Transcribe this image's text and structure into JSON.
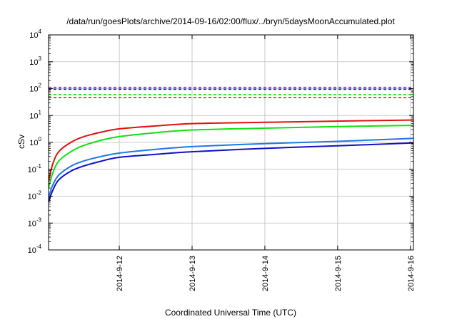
{
  "chart_data": {
    "type": "line",
    "title": "/data/run/goesPlots/archive/2014-09-16/02:00/flux/../bryn/5daysMoonAccumulated.plot",
    "xlabel": "Coordinated Universal Time (UTC)",
    "ylabel": "cSv",
    "y_scale": "log",
    "ylim": [
      0.0001,
      10000
    ],
    "y_ticks": [
      {
        "value": 0.0001,
        "base": "10",
        "exp": "-4"
      },
      {
        "value": 0.001,
        "base": "10",
        "exp": "-3"
      },
      {
        "value": 0.01,
        "base": "10",
        "exp": "-2"
      },
      {
        "value": 0.1,
        "base": "10",
        "exp": "-1"
      },
      {
        "value": 1,
        "base": "10",
        "exp": "0"
      },
      {
        "value": 10,
        "base": "10",
        "exp": "1"
      },
      {
        "value": 100,
        "base": "10",
        "exp": "2"
      },
      {
        "value": 1000,
        "base": "10",
        "exp": "3"
      },
      {
        "value": 10000,
        "base": "10",
        "exp": "4"
      }
    ],
    "xlim": [
      "2014-09-11 00:40",
      "2014-09-16 01:00"
    ],
    "x_ticks": [
      "2014-9-12",
      "2014-9-13",
      "2014-9-14",
      "2014-9-15",
      "2014-9-16"
    ],
    "grid": true,
    "legend": "none",
    "series": [
      {
        "color": "#e01010",
        "style": "solid",
        "x": [
          "2014-09-11 00:40",
          "2014-09-11 02:00",
          "2014-09-11 04:00",
          "2014-09-11 08:00",
          "2014-09-11 12:00",
          "2014-09-11 18:00",
          "2014-09-12 00:00",
          "2014-09-12 12:00",
          "2014-09-13 00:00",
          "2014-09-14 00:00",
          "2014-09-15 00:00",
          "2014-09-16 00:00",
          "2014-09-16 01:00"
        ],
        "values": [
          0.035,
          0.15,
          0.45,
          1.0,
          1.6,
          2.4,
          3.2,
          4.1,
          5.0,
          5.6,
          6.2,
          6.8,
          6.9
        ]
      },
      {
        "color": "#10e010",
        "style": "solid",
        "x": [
          "2014-09-11 00:40",
          "2014-09-11 02:00",
          "2014-09-11 04:00",
          "2014-09-11 08:00",
          "2014-09-11 12:00",
          "2014-09-11 18:00",
          "2014-09-12 00:00",
          "2014-09-12 12:00",
          "2014-09-13 00:00",
          "2014-09-14 00:00",
          "2014-09-15 00:00",
          "2014-09-16 00:00",
          "2014-09-16 01:00"
        ],
        "values": [
          0.02,
          0.07,
          0.2,
          0.45,
          0.75,
          1.2,
          1.65,
          2.3,
          2.9,
          3.4,
          3.9,
          4.3,
          4.4
        ]
      },
      {
        "color": "#1e78e6",
        "style": "solid",
        "x": [
          "2014-09-11 00:40",
          "2014-09-11 02:00",
          "2014-09-11 04:00",
          "2014-09-11 08:00",
          "2014-09-11 12:00",
          "2014-09-11 18:00",
          "2014-09-12 00:00",
          "2014-09-12 12:00",
          "2014-09-13 00:00",
          "2014-09-14 00:00",
          "2014-09-15 00:00",
          "2014-09-16 00:00",
          "2014-09-16 01:00"
        ],
        "values": [
          0.009,
          0.025,
          0.06,
          0.13,
          0.2,
          0.3,
          0.4,
          0.55,
          0.7,
          0.9,
          1.1,
          1.4,
          1.45
        ]
      },
      {
        "color": "#1010c8",
        "style": "solid",
        "x": [
          "2014-09-11 00:40",
          "2014-09-11 02:00",
          "2014-09-11 04:00",
          "2014-09-11 08:00",
          "2014-09-11 12:00",
          "2014-09-11 18:00",
          "2014-09-12 00:00",
          "2014-09-12 12:00",
          "2014-09-13 00:00",
          "2014-09-14 00:00",
          "2014-09-15 00:00",
          "2014-09-16 00:00",
          "2014-09-16 01:00"
        ],
        "values": [
          0.006,
          0.016,
          0.04,
          0.085,
          0.13,
          0.2,
          0.28,
          0.36,
          0.45,
          0.6,
          0.75,
          0.95,
          1.0
        ]
      },
      {
        "color": "#9020e0",
        "style": "dashed",
        "x": [
          "2014-09-11 00:40",
          "2014-09-16 01:00"
        ],
        "values": [
          112,
          112
        ]
      },
      {
        "color": "#1010c8",
        "style": "dashed",
        "x": [
          "2014-09-11 00:40",
          "2014-09-16 01:00"
        ],
        "values": [
          95,
          95
        ]
      },
      {
        "color": "#10e010",
        "style": "dashed",
        "x": [
          "2014-09-11 00:40",
          "2014-09-16 01:00"
        ],
        "values": [
          60,
          60
        ]
      },
      {
        "color": "#e01010",
        "style": "dashed",
        "x": [
          "2014-09-11 00:40",
          "2014-09-16 01:00"
        ],
        "values": [
          47,
          47
        ]
      }
    ]
  }
}
